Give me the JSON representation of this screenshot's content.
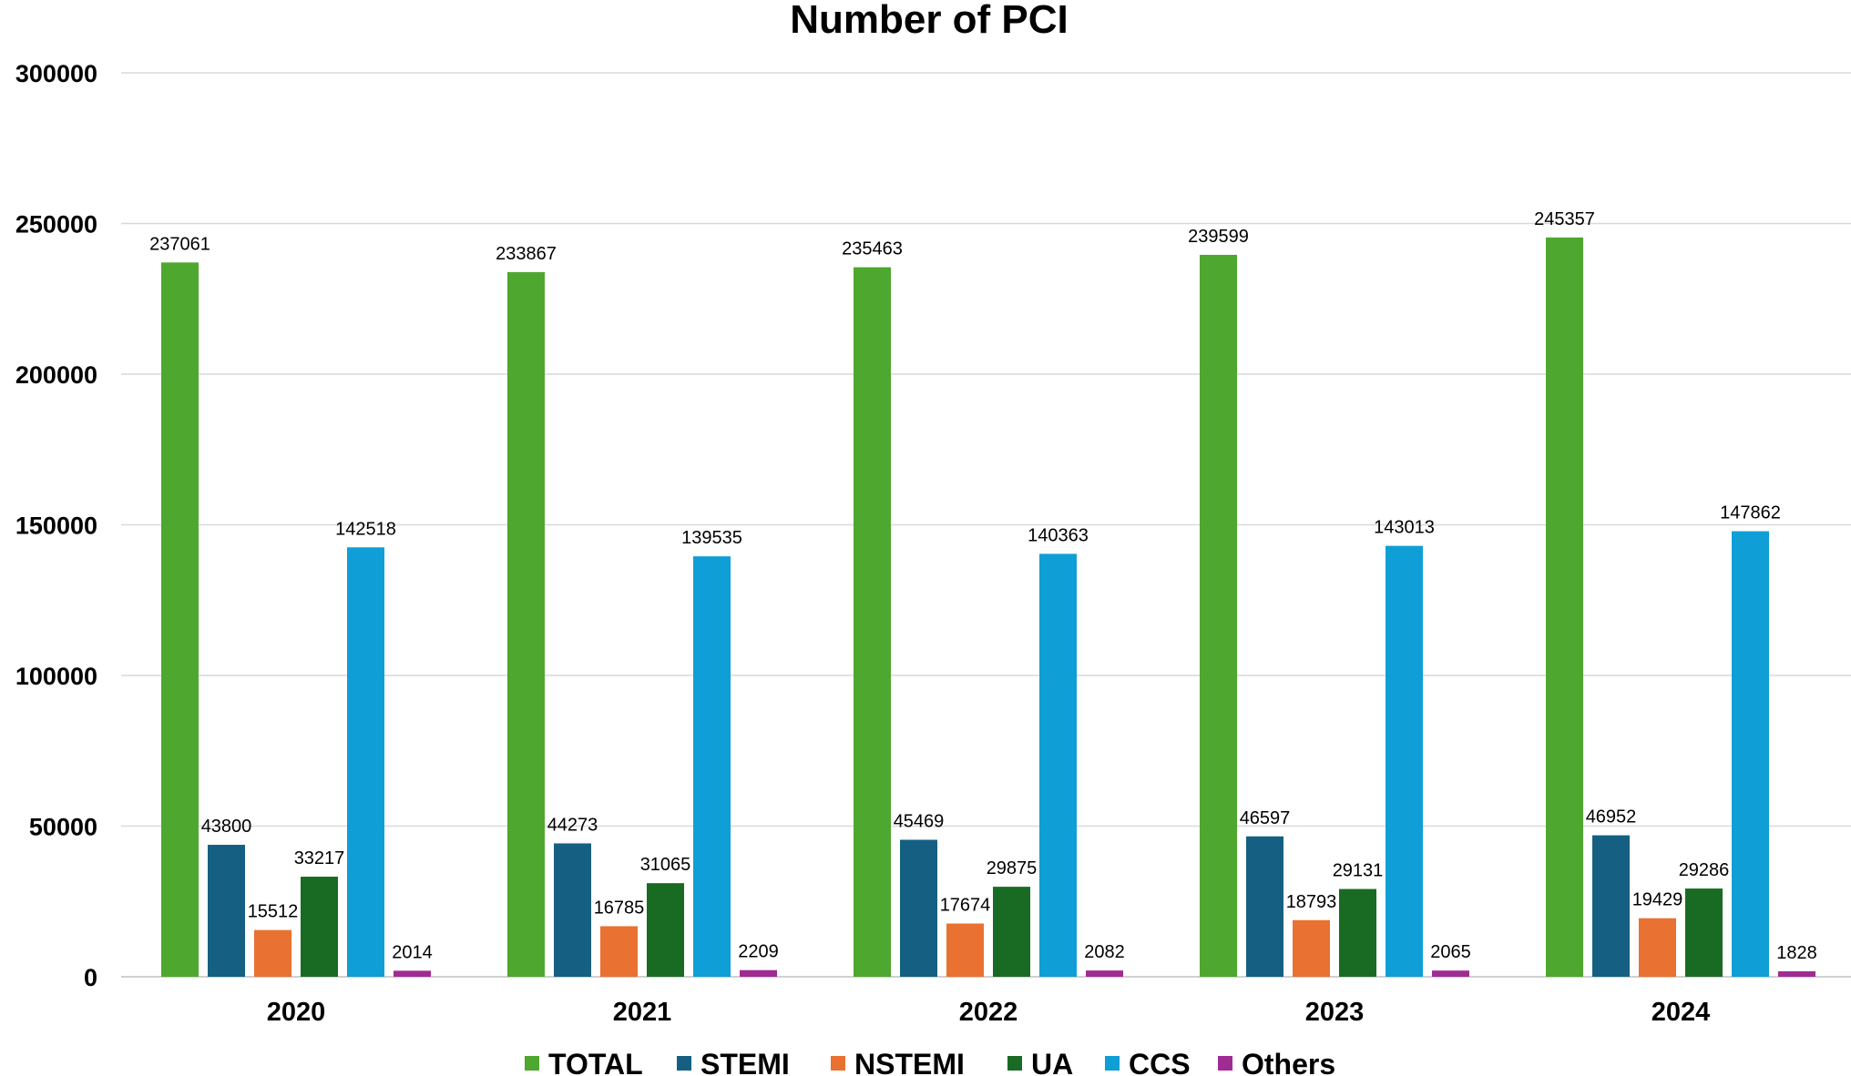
{
  "chart_data": {
    "type": "bar",
    "title": "Number of PCI",
    "xlabel": "",
    "ylabel": "",
    "ylim": [
      0,
      300000
    ],
    "yticks": [
      "0",
      "50000",
      "100000",
      "150000",
      "200000",
      "250000",
      "300000"
    ],
    "ytick_values": [
      0,
      50000,
      100000,
      150000,
      200000,
      250000,
      300000
    ],
    "categories": [
      "2020",
      "2021",
      "2022",
      "2023",
      "2024"
    ],
    "grid": true,
    "legend_position": "bottom",
    "series": [
      {
        "name": "TOTAL",
        "color": "#4ea72e",
        "values": [
          237061,
          233867,
          235463,
          239599,
          245357
        ]
      },
      {
        "name": "STEMI",
        "color": "#156082",
        "values": [
          43800,
          44273,
          45469,
          46597,
          46952
        ]
      },
      {
        "name": "NSTEMI",
        "color": "#e97132",
        "values": [
          15512,
          16785,
          17674,
          18793,
          19429
        ]
      },
      {
        "name": "UA",
        "color": "#196b24",
        "values": [
          33217,
          31065,
          29875,
          29131,
          29286
        ]
      },
      {
        "name": "CCS",
        "color": "#0f9ed5",
        "values": [
          142518,
          139535,
          140363,
          143013,
          147862
        ]
      },
      {
        "name": "Others",
        "color": "#a02b93",
        "values": [
          2014,
          2209,
          2082,
          2065,
          1828
        ]
      }
    ]
  }
}
